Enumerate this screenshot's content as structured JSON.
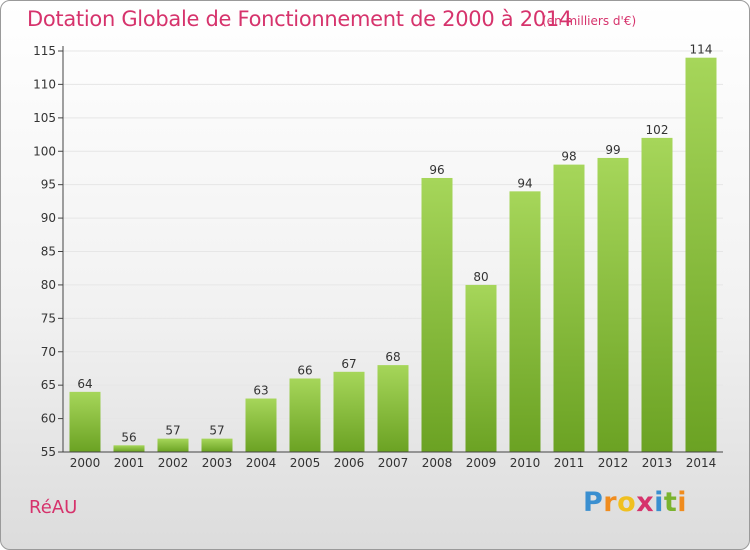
{
  "header": {
    "title": "Dotation Globale de Fonctionnement de 2000 à 2014",
    "unit": "(en milliers d'€)"
  },
  "footer": {
    "commune": "RéAU",
    "brand": "Proxiti",
    "brand_letters": [
      "P",
      "r",
      "o",
      "x",
      "i",
      "t",
      "i"
    ],
    "brand_colors": [
      "#3a8fd0",
      "#f08c1e",
      "#f0c020",
      "#d6336c",
      "#3a8fd0",
      "#7ab32e",
      "#f08c1e"
    ]
  },
  "colors": {
    "bar_light": "#a6d65a",
    "bar_dark": "#6ba223",
    "text": "#333333",
    "axis": "#444444",
    "grid": "#e6e6e6",
    "accent": "#d6336c"
  },
  "chart_data": {
    "type": "bar",
    "title": "Dotation Globale de Fonctionnement de 2000 à 2014",
    "subtitle": "(en milliers d'€)",
    "xlabel": "",
    "ylabel": "",
    "categories": [
      "2000",
      "2001",
      "2002",
      "2003",
      "2004",
      "2005",
      "2006",
      "2007",
      "2008",
      "2009",
      "2010",
      "2011",
      "2012",
      "2013",
      "2014"
    ],
    "values": [
      64,
      56,
      57,
      57,
      63,
      66,
      67,
      68,
      96,
      80,
      94,
      98,
      99,
      102,
      114
    ],
    "ylim": [
      55,
      115
    ],
    "yticks": [
      55,
      60,
      65,
      70,
      75,
      80,
      85,
      90,
      95,
      100,
      105,
      110,
      115
    ],
    "grid": true,
    "data_labels": true
  }
}
